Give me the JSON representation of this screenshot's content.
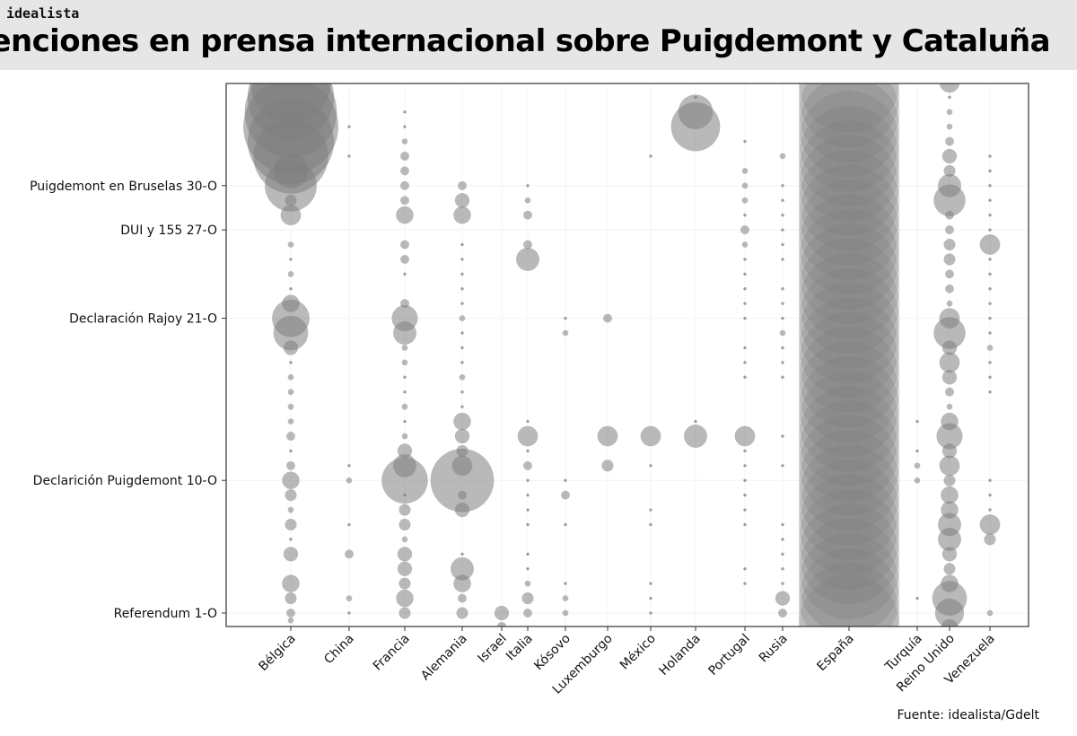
{
  "brand": "idealista",
  "source": "Fuente: idealista/Gdelt",
  "chart_data": {
    "type": "scatter",
    "title": "Menciones en prensa internacional sobre Puigdemont y Cataluña",
    "xlabel": "",
    "ylabel": "",
    "categories": [
      "Bélgica",
      "China",
      "Francia",
      "Alemania",
      "Israel",
      "Italia",
      "Kósovo",
      "Luxemburgo",
      "México",
      "Holanda",
      "Portugal",
      "Rusia",
      "España",
      "Turquía",
      "Reino Unido",
      "Venezuela"
    ],
    "y_ticks": [
      {
        "day": 1,
        "label": "Referendum 1-O"
      },
      {
        "day": 10,
        "label": "Declarición Puigdemont 10-O"
      },
      {
        "day": 21,
        "label": "Declaración Rajoy 21-O"
      },
      {
        "day": 27,
        "label": "DUI y 155 27-O"
      },
      {
        "day": 30,
        "label": "Puigdemont en Bruselas 30-O"
      }
    ],
    "ylim": [
      0.2,
      37.1
    ],
    "size_note": "bubble radius proportional to relative number of mentions (unscaled units)",
    "series": [
      {
        "name": "Bélgica",
        "points": [
          [
            0.5,
            2
          ],
          [
            1,
            3
          ],
          [
            2,
            4
          ],
          [
            3,
            6
          ],
          [
            5,
            5
          ],
          [
            6,
            1
          ],
          [
            7,
            4
          ],
          [
            8,
            2
          ],
          [
            9,
            4
          ],
          [
            10,
            6
          ],
          [
            11,
            3
          ],
          [
            12,
            1
          ],
          [
            13,
            3
          ],
          [
            14,
            2
          ],
          [
            15,
            2
          ],
          [
            16,
            2
          ],
          [
            17,
            2
          ],
          [
            18,
            1
          ],
          [
            19,
            5
          ],
          [
            20,
            12
          ],
          [
            21,
            13
          ],
          [
            22,
            6
          ],
          [
            23,
            1
          ],
          [
            24,
            2
          ],
          [
            25,
            1
          ],
          [
            26,
            2
          ],
          [
            28,
            7
          ],
          [
            29,
            4
          ],
          [
            30,
            18
          ],
          [
            31,
            12
          ],
          [
            32,
            26
          ],
          [
            33,
            30
          ],
          [
            34,
            33
          ],
          [
            35,
            32
          ],
          [
            36,
            30
          ],
          [
            37,
            28
          ]
        ]
      },
      {
        "name": "China",
        "points": [
          [
            1,
            1
          ],
          [
            2,
            2
          ],
          [
            5,
            3
          ],
          [
            7,
            1
          ],
          [
            10,
            2
          ],
          [
            11,
            1
          ],
          [
            32,
            1
          ],
          [
            34,
            1
          ]
        ]
      },
      {
        "name": "Francia",
        "points": [
          [
            1,
            4
          ],
          [
            2,
            6
          ],
          [
            3,
            4
          ],
          [
            4,
            5
          ],
          [
            5,
            5
          ],
          [
            6,
            2
          ],
          [
            7,
            4
          ],
          [
            8,
            4
          ],
          [
            9,
            1
          ],
          [
            10,
            16
          ],
          [
            11,
            8
          ],
          [
            12,
            5
          ],
          [
            13,
            2
          ],
          [
            14,
            1
          ],
          [
            15,
            2
          ],
          [
            16,
            1
          ],
          [
            17,
            1
          ],
          [
            18,
            2
          ],
          [
            19,
            2
          ],
          [
            20,
            8
          ],
          [
            21,
            9
          ],
          [
            22,
            3
          ],
          [
            24,
            1
          ],
          [
            25,
            3
          ],
          [
            26,
            3
          ],
          [
            28,
            6
          ],
          [
            29,
            3
          ],
          [
            30,
            3
          ],
          [
            31,
            3
          ],
          [
            32,
            3
          ],
          [
            33,
            2
          ],
          [
            34,
            1
          ],
          [
            35,
            1
          ]
        ]
      },
      {
        "name": "Alemania",
        "points": [
          [
            1,
            4
          ],
          [
            2,
            3
          ],
          [
            3,
            6
          ],
          [
            4,
            8
          ],
          [
            5,
            1
          ],
          [
            8,
            5
          ],
          [
            9,
            3
          ],
          [
            10,
            22
          ],
          [
            11,
            7
          ],
          [
            12,
            4
          ],
          [
            13,
            5
          ],
          [
            14,
            6
          ],
          [
            15,
            1
          ],
          [
            16,
            1
          ],
          [
            17,
            2
          ],
          [
            18,
            1
          ],
          [
            19,
            1
          ],
          [
            20,
            1
          ],
          [
            21,
            2
          ],
          [
            22,
            1
          ],
          [
            23,
            1
          ],
          [
            24,
            1
          ],
          [
            25,
            1
          ],
          [
            26,
            1
          ],
          [
            28,
            6
          ],
          [
            29,
            5
          ],
          [
            30,
            3
          ]
        ]
      },
      {
        "name": "Israel",
        "points": [
          [
            0.1,
            3
          ],
          [
            1,
            5
          ]
        ]
      },
      {
        "name": "Italia",
        "points": [
          [
            1,
            3
          ],
          [
            2,
            4
          ],
          [
            3,
            2
          ],
          [
            4,
            1
          ],
          [
            5,
            1
          ],
          [
            7,
            1
          ],
          [
            8,
            1
          ],
          [
            9,
            1
          ],
          [
            10,
            1
          ],
          [
            11,
            3
          ],
          [
            12,
            1
          ],
          [
            13,
            7
          ],
          [
            14,
            1
          ],
          [
            25,
            8
          ],
          [
            26,
            3
          ],
          [
            28,
            3
          ],
          [
            29,
            2
          ],
          [
            30,
            1
          ],
          [
            37,
            1
          ]
        ]
      },
      {
        "name": "Kósovo",
        "points": [
          [
            1,
            2
          ],
          [
            2,
            2
          ],
          [
            3,
            1
          ],
          [
            7,
            1
          ],
          [
            9,
            3
          ],
          [
            10,
            1
          ],
          [
            20,
            2
          ],
          [
            21,
            1
          ]
        ]
      },
      {
        "name": "Luxemburgo",
        "points": [
          [
            11,
            4
          ],
          [
            13,
            7
          ],
          [
            21,
            3
          ]
        ]
      },
      {
        "name": "México",
        "points": [
          [
            1,
            1
          ],
          [
            2,
            1
          ],
          [
            3,
            1
          ],
          [
            7,
            1
          ],
          [
            8,
            1
          ],
          [
            11,
            1
          ],
          [
            13,
            7
          ],
          [
            32,
            1
          ]
        ]
      },
      {
        "name": "Holanda",
        "points": [
          [
            13,
            8
          ],
          [
            14,
            1
          ],
          [
            34,
            17
          ],
          [
            35,
            12
          ],
          [
            36,
            1
          ]
        ]
      },
      {
        "name": "Portugal",
        "points": [
          [
            0,
            1
          ],
          [
            3,
            1
          ],
          [
            4,
            1
          ],
          [
            7,
            1
          ],
          [
            8,
            1
          ],
          [
            9,
            1
          ],
          [
            10,
            1
          ],
          [
            11,
            1
          ],
          [
            12,
            1
          ],
          [
            13,
            7
          ],
          [
            17,
            1
          ],
          [
            18,
            1
          ],
          [
            19,
            1
          ],
          [
            21,
            1
          ],
          [
            22,
            1
          ],
          [
            23,
            1
          ],
          [
            24,
            1
          ],
          [
            25,
            1
          ],
          [
            26,
            2
          ],
          [
            27,
            3
          ],
          [
            28,
            1
          ],
          [
            29,
            2
          ],
          [
            30,
            2
          ],
          [
            31,
            2
          ],
          [
            33,
            1
          ]
        ]
      },
      {
        "name": "Rusia",
        "points": [
          [
            1,
            3
          ],
          [
            2,
            5
          ],
          [
            3,
            1
          ],
          [
            4,
            1
          ],
          [
            5,
            1
          ],
          [
            6,
            1
          ],
          [
            7,
            1
          ],
          [
            11,
            1
          ],
          [
            13,
            1
          ],
          [
            17,
            1
          ],
          [
            18,
            1
          ],
          [
            19,
            1
          ],
          [
            20,
            2
          ],
          [
            21,
            1
          ],
          [
            22,
            1
          ],
          [
            23,
            1
          ],
          [
            25,
            1
          ],
          [
            26,
            1
          ],
          [
            27,
            1
          ],
          [
            28,
            1
          ],
          [
            29,
            1
          ],
          [
            30,
            1
          ],
          [
            32,
            2
          ]
        ]
      },
      {
        "name": "España",
        "points": [
          [
            0.2,
            35
          ],
          [
            1,
            35
          ],
          [
            2,
            35
          ],
          [
            3,
            35
          ],
          [
            4,
            35
          ],
          [
            5,
            35
          ],
          [
            6,
            35
          ],
          [
            7,
            35
          ],
          [
            8,
            35
          ],
          [
            9,
            35
          ],
          [
            10,
            35
          ],
          [
            11,
            35
          ],
          [
            12,
            35
          ],
          [
            13,
            35
          ],
          [
            14,
            35
          ],
          [
            15,
            35
          ],
          [
            16,
            35
          ],
          [
            17,
            35
          ],
          [
            18,
            35
          ],
          [
            19,
            35
          ],
          [
            20,
            35
          ],
          [
            21,
            35
          ],
          [
            22,
            35
          ],
          [
            23,
            35
          ],
          [
            24,
            35
          ],
          [
            25,
            35
          ],
          [
            26,
            35
          ],
          [
            27,
            35
          ],
          [
            28,
            35
          ],
          [
            29,
            35
          ],
          [
            30,
            35
          ],
          [
            31,
            35
          ],
          [
            32,
            35
          ],
          [
            33,
            35
          ],
          [
            34,
            35
          ],
          [
            35,
            35
          ],
          [
            36,
            35
          ],
          [
            37,
            35
          ]
        ]
      },
      {
        "name": "Turquía",
        "points": [
          [
            2,
            1
          ],
          [
            10,
            2
          ],
          [
            11,
            2
          ],
          [
            12,
            1
          ],
          [
            14,
            1
          ]
        ]
      },
      {
        "name": "Reino Unido",
        "points": [
          [
            0,
            6
          ],
          [
            1,
            10
          ],
          [
            2,
            12
          ],
          [
            3,
            6
          ],
          [
            4,
            4
          ],
          [
            5,
            5
          ],
          [
            6,
            8
          ],
          [
            7,
            8
          ],
          [
            8,
            6
          ],
          [
            9,
            6
          ],
          [
            10,
            4
          ],
          [
            11,
            7
          ],
          [
            12,
            5
          ],
          [
            13,
            9
          ],
          [
            14,
            6
          ],
          [
            15,
            2
          ],
          [
            16,
            3
          ],
          [
            17,
            5
          ],
          [
            18,
            7
          ],
          [
            19,
            5
          ],
          [
            20,
            11
          ],
          [
            21,
            7
          ],
          [
            22,
            2
          ],
          [
            23,
            3
          ],
          [
            24,
            3
          ],
          [
            25,
            4
          ],
          [
            26,
            4
          ],
          [
            27,
            3
          ],
          [
            28,
            3
          ],
          [
            29,
            11
          ],
          [
            30,
            8
          ],
          [
            31,
            4
          ],
          [
            32,
            5
          ],
          [
            33,
            3
          ],
          [
            34,
            2
          ],
          [
            35,
            2
          ],
          [
            36,
            1
          ],
          [
            37,
            7
          ]
        ]
      },
      {
        "name": "Venezuela",
        "points": [
          [
            1,
            2
          ],
          [
            6,
            4
          ],
          [
            7,
            7
          ],
          [
            8,
            1
          ],
          [
            9,
            1
          ],
          [
            10,
            1
          ],
          [
            16,
            1
          ],
          [
            17,
            1
          ],
          [
            18,
            1
          ],
          [
            19,
            2
          ],
          [
            20,
            1
          ],
          [
            21,
            1
          ],
          [
            22,
            1
          ],
          [
            23,
            1
          ],
          [
            24,
            1
          ],
          [
            25,
            1
          ],
          [
            26,
            7
          ],
          [
            27,
            1
          ],
          [
            28,
            1
          ],
          [
            29,
            1
          ],
          [
            30,
            1
          ],
          [
            31,
            1
          ],
          [
            32,
            1
          ]
        ]
      }
    ]
  }
}
